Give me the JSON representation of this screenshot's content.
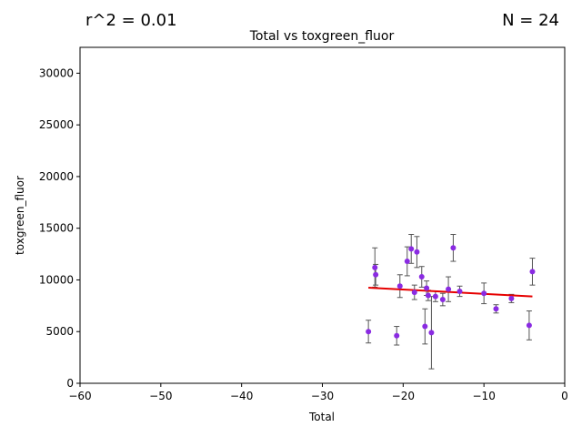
{
  "annotations": {
    "r_squared": "r^2 = 0.01",
    "n": "N = 24"
  },
  "chart_data": {
    "type": "scatter",
    "title": "Total vs toxgreen_fluor",
    "xlabel": "Total",
    "ylabel": "toxgreen_fluor",
    "xlim": [
      -60,
      0
    ],
    "ylim": [
      0,
      32500
    ],
    "xticks": [
      -60,
      -50,
      -40,
      -30,
      -20,
      -10,
      0
    ],
    "yticks": [
      0,
      5000,
      10000,
      15000,
      20000,
      25000,
      30000
    ],
    "grid": false,
    "point_color": "#8a2be2",
    "errorbar_color": "#555555",
    "fit_color": "#e60000",
    "points": [
      {
        "x": -24.3,
        "y": 5000,
        "err": 1100
      },
      {
        "x": -23.5,
        "y": 11200,
        "err": 1900
      },
      {
        "x": -23.4,
        "y": 10500,
        "err": 1000
      },
      {
        "x": -20.8,
        "y": 4600,
        "err": 900
      },
      {
        "x": -20.4,
        "y": 9400,
        "err": 1100
      },
      {
        "x": -19.5,
        "y": 11800,
        "err": 1400
      },
      {
        "x": -19.0,
        "y": 13000,
        "err": 1400
      },
      {
        "x": -18.6,
        "y": 8800,
        "err": 700
      },
      {
        "x": -18.3,
        "y": 12700,
        "err": 1500
      },
      {
        "x": -17.7,
        "y": 10300,
        "err": 1000
      },
      {
        "x": -17.3,
        "y": 5500,
        "err": 1700
      },
      {
        "x": -17.1,
        "y": 9200,
        "err": 700
      },
      {
        "x": -16.9,
        "y": 8500,
        "err": 500
      },
      {
        "x": -16.5,
        "y": 4900,
        "err": 3500
      },
      {
        "x": -16.0,
        "y": 8400,
        "err": 500
      },
      {
        "x": -15.1,
        "y": 8100,
        "err": 600
      },
      {
        "x": -14.4,
        "y": 9100,
        "err": 1200
      },
      {
        "x": -13.8,
        "y": 13100,
        "err": 1300
      },
      {
        "x": -13.0,
        "y": 8900,
        "err": 500
      },
      {
        "x": -10.0,
        "y": 8700,
        "err": 1000
      },
      {
        "x": -8.5,
        "y": 7200,
        "err": 400
      },
      {
        "x": -6.6,
        "y": 8200,
        "err": 400
      },
      {
        "x": -4.4,
        "y": 5600,
        "err": 1400
      },
      {
        "x": -4.0,
        "y": 10800,
        "err": 1300
      }
    ],
    "fit_line": {
      "x": [
        -24.3,
        -4.0
      ],
      "y": [
        9250,
        8400
      ]
    }
  }
}
